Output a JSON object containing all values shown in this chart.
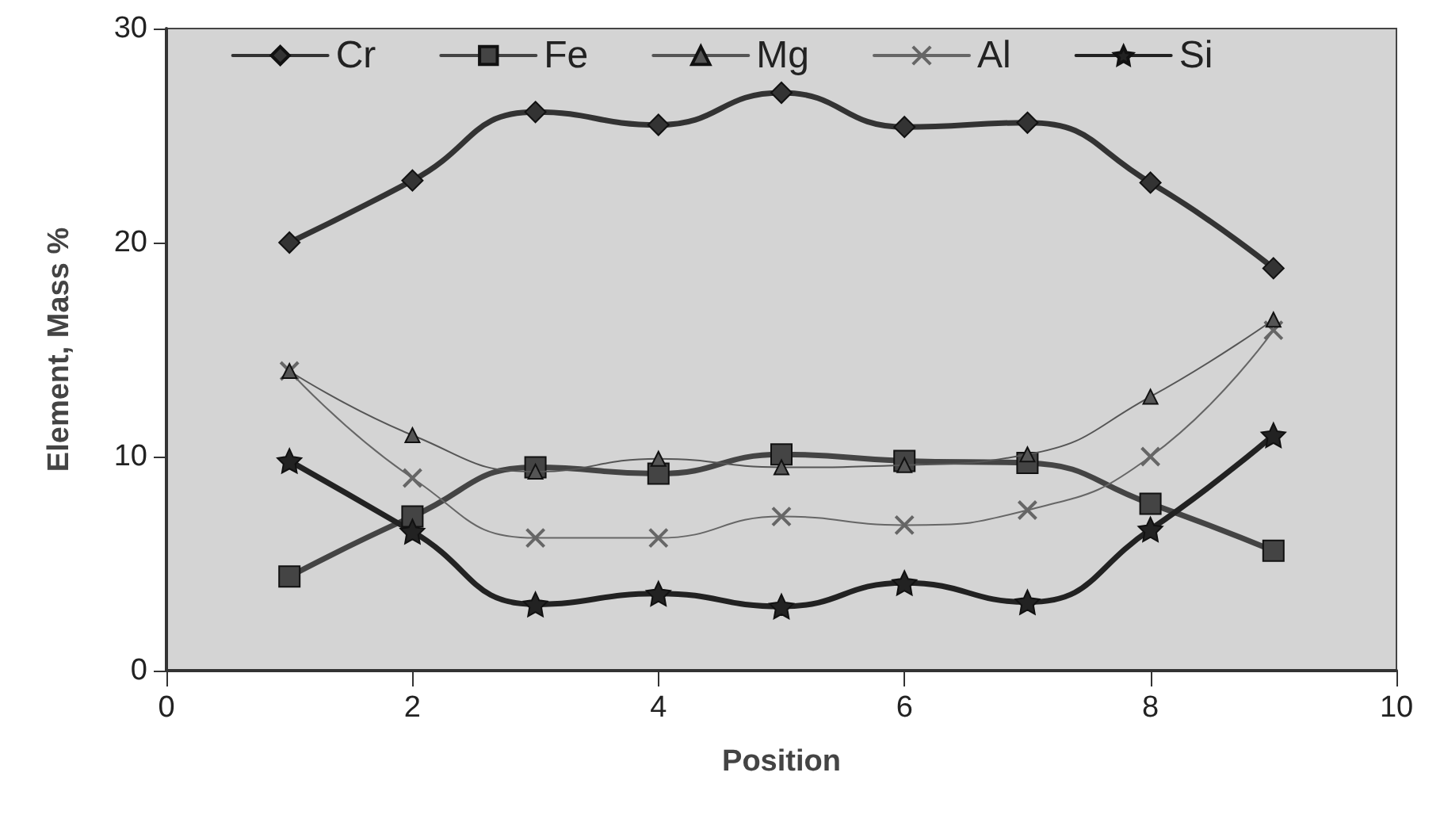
{
  "chart_data": {
    "type": "line",
    "xlabel": "Position",
    "ylabel": "Element, Mass %",
    "x": [
      1,
      2,
      3,
      4,
      5,
      6,
      7,
      8,
      9
    ],
    "xlim": [
      0,
      10
    ],
    "xticks": [
      0,
      2,
      4,
      6,
      8,
      10
    ],
    "ylim": [
      0,
      30
    ],
    "yticks": [
      0,
      10,
      20,
      30
    ],
    "grid": false,
    "legend": "top",
    "line_style": "solid",
    "series": [
      {
        "name": "Cr",
        "color": "#333333",
        "marker": "diamond",
        "values": [
          20.0,
          22.9,
          26.1,
          25.5,
          27.0,
          25.4,
          25.6,
          22.8,
          18.8
        ]
      },
      {
        "name": "Fe",
        "color": "#444444",
        "marker": "square",
        "values": [
          4.4,
          7.2,
          9.5,
          9.2,
          10.1,
          9.8,
          9.7,
          7.8,
          5.6
        ]
      },
      {
        "name": "Mg",
        "color": "#555555",
        "marker": "triangle",
        "values": [
          14.0,
          11.0,
          9.3,
          9.9,
          9.5,
          9.6,
          10.1,
          12.8,
          16.4
        ]
      },
      {
        "name": "Al",
        "color": "#666666",
        "marker": "cross",
        "values": [
          14.0,
          9.0,
          6.2,
          6.2,
          7.2,
          6.8,
          7.5,
          10.0,
          15.9
        ]
      },
      {
        "name": "Si",
        "color": "#222222",
        "marker": "star",
        "values": [
          9.8,
          6.5,
          3.1,
          3.6,
          3.0,
          4.1,
          3.2,
          6.6,
          11.0
        ]
      }
    ]
  }
}
